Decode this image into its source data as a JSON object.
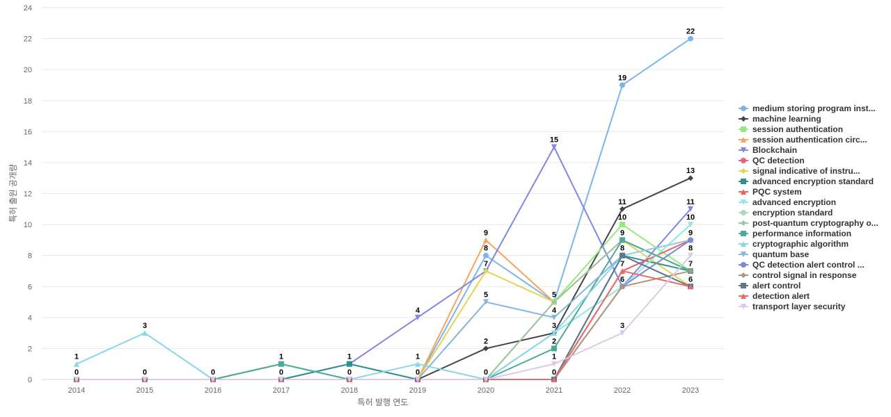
{
  "chart_data": {
    "type": "line",
    "xlabel": "특허 발행 연도",
    "ylabel": "특허 출원 공개량",
    "ylim": [
      0,
      24
    ],
    "yticks": [
      0,
      2,
      4,
      6,
      8,
      10,
      12,
      14,
      16,
      18,
      20,
      22,
      24
    ],
    "grid": true,
    "legend_position": "right",
    "categories": [
      "2014",
      "2015",
      "2016",
      "2017",
      "2018",
      "2019",
      "2020",
      "2021",
      "2022",
      "2023"
    ],
    "series": [
      {
        "name": "medium storing program inst...",
        "color": "#7cb5ec",
        "marker": "circle",
        "values": [
          0,
          0,
          0,
          0,
          0,
          0,
          8,
          5,
          19,
          22
        ]
      },
      {
        "name": "machine learning",
        "color": "#434348",
        "marker": "diamond",
        "values": [
          0,
          0,
          0,
          0,
          0,
          0,
          2,
          3,
          11,
          13
        ]
      },
      {
        "name": "session authentication",
        "color": "#90ed7d",
        "marker": "square",
        "values": [
          0,
          0,
          0,
          0,
          0,
          0,
          0,
          5,
          10,
          7
        ]
      },
      {
        "name": "session authentication circ...",
        "color": "#f7a35c",
        "marker": "triangle",
        "values": [
          0,
          0,
          0,
          0,
          0,
          0,
          9,
          5,
          9,
          7
        ]
      },
      {
        "name": "Blockchain",
        "color": "#8085e9",
        "marker": "triangle-down",
        "values": [
          0,
          0,
          0,
          0,
          1,
          4,
          7,
          15,
          6,
          11
        ]
      },
      {
        "name": "QC detection",
        "color": "#f15c80",
        "marker": "circle",
        "values": [
          0,
          0,
          0,
          0,
          0,
          0,
          0,
          0,
          8,
          9
        ]
      },
      {
        "name": "signal indicative of instru...",
        "color": "#e4d354",
        "marker": "diamond",
        "values": [
          0,
          0,
          0,
          0,
          0,
          0,
          7,
          5,
          9,
          6
        ]
      },
      {
        "name": "advanced encryption standard",
        "color": "#2b908f",
        "marker": "square",
        "values": [
          0,
          0,
          0,
          0,
          1,
          0,
          0,
          0,
          8,
          7
        ]
      },
      {
        "name": "PQC system",
        "color": "#f45b5b",
        "marker": "triangle",
        "values": [
          0,
          0,
          0,
          0,
          0,
          0,
          0,
          0,
          7,
          9
        ]
      },
      {
        "name": "advanced encryption",
        "color": "#91e8e1",
        "marker": "triangle-down",
        "values": [
          0,
          0,
          0,
          0,
          0,
          0,
          0,
          3,
          6,
          10
        ]
      },
      {
        "name": "encryption standard",
        "color": "#a6dcc0",
        "marker": "circle",
        "values": [
          0,
          0,
          0,
          1,
          0,
          0,
          0,
          5,
          9,
          7
        ]
      },
      {
        "name": "post-quantum cryptography o...",
        "color": "#a0c49d",
        "marker": "diamond",
        "values": [
          0,
          0,
          0,
          1,
          0,
          0,
          0,
          5,
          9,
          7
        ]
      },
      {
        "name": "performance information",
        "color": "#4eaa98",
        "marker": "square",
        "values": [
          0,
          0,
          0,
          1,
          0,
          0,
          0,
          2,
          9,
          7
        ]
      },
      {
        "name": "cryptographic algorithm",
        "color": "#8ad6e6",
        "marker": "triangle",
        "values": [
          1,
          3,
          0,
          0,
          0,
          1,
          0,
          3,
          8,
          9
        ]
      },
      {
        "name": "quantum base",
        "color": "#86b6dc",
        "marker": "triangle-down",
        "values": [
          0,
          0,
          0,
          0,
          0,
          0,
          5,
          4,
          8,
          6
        ]
      },
      {
        "name": "QC detection alert control ...",
        "color": "#7b8ad6",
        "marker": "circle",
        "values": [
          0,
          0,
          0,
          0,
          0,
          0,
          0,
          0,
          6,
          9
        ]
      },
      {
        "name": "control signal in response",
        "color": "#b0957a",
        "marker": "diamond",
        "values": [
          0,
          0,
          0,
          0,
          0,
          0,
          0,
          0,
          6,
          7
        ]
      },
      {
        "name": "alert control",
        "color": "#5a7a8c",
        "marker": "square",
        "values": [
          0,
          0,
          0,
          0,
          0,
          0,
          0,
          0,
          8,
          6
        ]
      },
      {
        "name": "detection alert",
        "color": "#e86a6a",
        "marker": "triangle",
        "values": [
          0,
          0,
          0,
          0,
          0,
          0,
          0,
          0,
          7,
          6
        ]
      },
      {
        "name": "transport layer security",
        "color": "#ddc8e6",
        "marker": "triangle-down",
        "values": [
          0,
          0,
          0,
          0,
          0,
          0,
          0,
          1,
          3,
          8
        ]
      }
    ],
    "data_labels": [
      {
        "x": "2014",
        "labels": [
          "1",
          "0"
        ]
      },
      {
        "x": "2015",
        "labels": [
          "3",
          "0"
        ]
      },
      {
        "x": "2016",
        "labels": [
          "0"
        ]
      },
      {
        "x": "2017",
        "labels": [
          "1",
          "0"
        ]
      },
      {
        "x": "2018",
        "labels": [
          "1",
          "0"
        ]
      },
      {
        "x": "2019",
        "labels": [
          "4",
          "1",
          "0"
        ]
      },
      {
        "x": "2020",
        "labels": [
          "9",
          "8",
          "7",
          "5",
          "2",
          "0"
        ]
      },
      {
        "x": "2021",
        "labels": [
          "15",
          "5",
          "4",
          "3",
          "2",
          "1",
          "0"
        ]
      },
      {
        "x": "2022",
        "labels": [
          "19",
          "11",
          "10",
          "9",
          "8",
          "7",
          "6",
          "3"
        ]
      },
      {
        "x": "2023",
        "labels": [
          "22",
          "13",
          "11",
          "10",
          "9",
          "8",
          "7",
          "6"
        ]
      }
    ]
  }
}
